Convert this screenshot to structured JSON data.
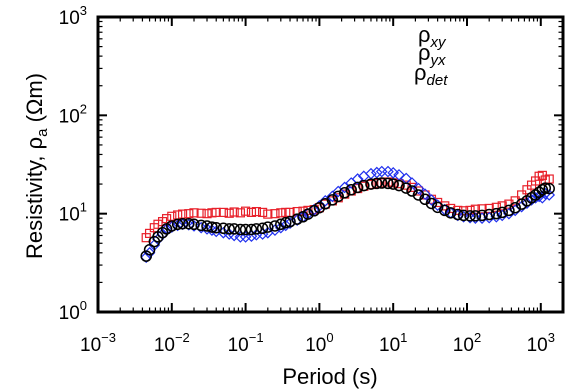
{
  "chart_data": {
    "type": "scatter",
    "title": "",
    "xlabel": "Period (s)",
    "ylabel": {
      "main": "Resistivity, ",
      "rho": "ρ",
      "sub": "a",
      "unit": " (Ωm)"
    },
    "x_scale": "log",
    "y_scale": "log",
    "xlim": [
      0.001,
      2000
    ],
    "ylim": [
      1,
      1000
    ],
    "grid": false,
    "legend_position": "top-right",
    "x_ticks": [
      {
        "value": 0.001,
        "base": "10",
        "exp": "−3"
      },
      {
        "value": 0.01,
        "base": "10",
        "exp": "−2"
      },
      {
        "value": 0.1,
        "base": "10",
        "exp": "−1"
      },
      {
        "value": 1,
        "base": "10",
        "exp": "0"
      },
      {
        "value": 10,
        "base": "10",
        "exp": "1"
      },
      {
        "value": 100,
        "base": "10",
        "exp": "2"
      },
      {
        "value": 1000,
        "base": "10",
        "exp": "3"
      }
    ],
    "y_ticks": [
      {
        "value": 1,
        "base": "10",
        "exp": "0"
      },
      {
        "value": 10,
        "base": "10",
        "exp": "1"
      },
      {
        "value": 100,
        "base": "10",
        "exp": "2"
      },
      {
        "value": 1000,
        "base": "10",
        "exp": "3"
      }
    ],
    "series": [
      {
        "key": "xy",
        "name_symbol": "ρ",
        "name_sub": "xy",
        "color": "#e8202a",
        "marker": "square",
        "points": [
          [
            0.0045,
            5.7
          ],
          [
            0.005,
            6.3
          ],
          [
            0.0058,
            7.2
          ],
          [
            0.0065,
            7.8
          ],
          [
            0.0075,
            8.3
          ],
          [
            0.0085,
            8.9
          ],
          [
            0.01,
            9.4
          ],
          [
            0.012,
            9.7
          ],
          [
            0.014,
            9.9
          ],
          [
            0.017,
            10.0
          ],
          [
            0.02,
            10.2
          ],
          [
            0.025,
            10.1
          ],
          [
            0.03,
            10.0
          ],
          [
            0.035,
            10.2
          ],
          [
            0.04,
            10.3
          ],
          [
            0.05,
            10.3
          ],
          [
            0.06,
            10.1
          ],
          [
            0.07,
            10.4
          ],
          [
            0.085,
            10.2
          ],
          [
            0.1,
            10.6
          ],
          [
            0.12,
            10.3
          ],
          [
            0.14,
            10.5
          ],
          [
            0.17,
            10.3
          ],
          [
            0.2,
            9.9
          ],
          [
            0.25,
            10.0
          ],
          [
            0.3,
            10.2
          ],
          [
            0.35,
            10.3
          ],
          [
            0.4,
            10.3
          ],
          [
            0.5,
            10.5
          ],
          [
            0.6,
            10.6
          ],
          [
            0.7,
            10.8
          ],
          [
            0.85,
            11.0
          ],
          [
            1.0,
            11.5
          ],
          [
            1.2,
            12.5
          ],
          [
            1.5,
            13.5
          ],
          [
            1.8,
            14.5
          ],
          [
            2.2,
            15.8
          ],
          [
            2.7,
            17.0
          ],
          [
            3.3,
            18.0
          ],
          [
            4.0,
            19.0
          ],
          [
            5.0,
            19.8
          ],
          [
            6.0,
            20.3
          ],
          [
            7.0,
            20.6
          ],
          [
            8.5,
            21.0
          ],
          [
            10,
            20.6
          ],
          [
            12,
            20.2
          ],
          [
            15,
            19.5
          ],
          [
            18,
            18.5
          ],
          [
            22,
            17.0
          ],
          [
            27,
            15.5
          ],
          [
            33,
            14.0
          ],
          [
            40,
            13.0
          ],
          [
            50,
            12.0
          ],
          [
            60,
            11.3
          ],
          [
            75,
            10.8
          ],
          [
            90,
            10.7
          ],
          [
            110,
            10.8
          ],
          [
            130,
            11.1
          ],
          [
            160,
            11.2
          ],
          [
            200,
            11.3
          ],
          [
            250,
            11.6
          ],
          [
            300,
            12.0
          ],
          [
            370,
            12.5
          ],
          [
            450,
            13.5
          ],
          [
            550,
            15.5
          ],
          [
            650,
            17.5
          ],
          [
            750,
            19.5
          ],
          [
            850,
            21.5
          ],
          [
            950,
            24.0
          ],
          [
            1050,
            24.5
          ],
          [
            1150,
            22.0
          ],
          [
            1300,
            22.5
          ]
        ]
      },
      {
        "key": "yx",
        "name_symbol": "ρ",
        "name_sub": "yx",
        "color": "#2030ee",
        "marker": "diamond",
        "points": [
          [
            0.0045,
            3.6
          ],
          [
            0.005,
            4.0
          ],
          [
            0.0058,
            4.8
          ],
          [
            0.0065,
            5.5
          ],
          [
            0.0075,
            6.2
          ],
          [
            0.0085,
            6.9
          ],
          [
            0.01,
            7.3
          ],
          [
            0.012,
            7.6
          ],
          [
            0.014,
            7.8
          ],
          [
            0.017,
            7.7
          ],
          [
            0.02,
            7.5
          ],
          [
            0.025,
            7.2
          ],
          [
            0.03,
            7.0
          ],
          [
            0.035,
            6.8
          ],
          [
            0.04,
            6.6
          ],
          [
            0.05,
            6.4
          ],
          [
            0.06,
            6.2
          ],
          [
            0.07,
            6.0
          ],
          [
            0.085,
            5.8
          ],
          [
            0.1,
            5.8
          ],
          [
            0.12,
            5.9
          ],
          [
            0.14,
            6.1
          ],
          [
            0.17,
            6.2
          ],
          [
            0.2,
            6.4
          ],
          [
            0.25,
            6.8
          ],
          [
            0.3,
            7.2
          ],
          [
            0.35,
            7.6
          ],
          [
            0.4,
            8.0
          ],
          [
            0.5,
            8.6
          ],
          [
            0.6,
            9.3
          ],
          [
            0.7,
            10.0
          ],
          [
            0.85,
            11.0
          ],
          [
            1.0,
            12.0
          ],
          [
            1.2,
            13.5
          ],
          [
            1.5,
            15.0
          ],
          [
            1.8,
            16.8
          ],
          [
            2.2,
            18.5
          ],
          [
            2.7,
            20.5
          ],
          [
            3.3,
            22.5
          ],
          [
            4.0,
            24.0
          ],
          [
            5.0,
            25.5
          ],
          [
            6.0,
            26.2
          ],
          [
            7.0,
            26.8
          ],
          [
            8.5,
            26.8
          ],
          [
            10,
            26.0
          ],
          [
            12,
            24.8
          ],
          [
            15,
            22.8
          ],
          [
            18,
            20.5
          ],
          [
            22,
            18.0
          ],
          [
            27,
            15.8
          ],
          [
            33,
            13.8
          ],
          [
            40,
            12.2
          ],
          [
            50,
            11.0
          ],
          [
            60,
            10.2
          ],
          [
            75,
            9.6
          ],
          [
            90,
            9.3
          ],
          [
            110,
            9.1
          ],
          [
            130,
            9.0
          ],
          [
            160,
            9.0
          ],
          [
            200,
            9.1
          ],
          [
            250,
            9.3
          ],
          [
            300,
            9.6
          ],
          [
            370,
            10.0
          ],
          [
            450,
            10.8
          ],
          [
            550,
            11.8
          ],
          [
            650,
            12.8
          ],
          [
            750,
            13.8
          ],
          [
            850,
            14.5
          ],
          [
            950,
            15.0
          ],
          [
            1050,
            14.5
          ],
          [
            1150,
            16.0
          ],
          [
            1300,
            15.5
          ]
        ]
      },
      {
        "key": "det",
        "name_symbol": "ρ",
        "name_sub": "det",
        "color": "#000000",
        "marker": "circle",
        "points": [
          [
            0.0045,
            3.7
          ],
          [
            0.005,
            4.3
          ],
          [
            0.0058,
            5.2
          ],
          [
            0.0065,
            5.8
          ],
          [
            0.0075,
            6.4
          ],
          [
            0.0085,
            7.0
          ],
          [
            0.01,
            7.5
          ],
          [
            0.012,
            7.8
          ],
          [
            0.014,
            7.9
          ],
          [
            0.017,
            7.9
          ],
          [
            0.02,
            7.8
          ],
          [
            0.025,
            7.6
          ],
          [
            0.03,
            7.5
          ],
          [
            0.035,
            7.3
          ],
          [
            0.04,
            7.2
          ],
          [
            0.05,
            7.1
          ],
          [
            0.06,
            7.0
          ],
          [
            0.07,
            7.0
          ],
          [
            0.085,
            6.9
          ],
          [
            0.1,
            6.9
          ],
          [
            0.12,
            6.9
          ],
          [
            0.14,
            7.0
          ],
          [
            0.17,
            7.1
          ],
          [
            0.2,
            7.3
          ],
          [
            0.25,
            7.5
          ],
          [
            0.3,
            7.8
          ],
          [
            0.35,
            8.1
          ],
          [
            0.4,
            8.3
          ],
          [
            0.5,
            8.8
          ],
          [
            0.6,
            9.3
          ],
          [
            0.7,
            9.9
          ],
          [
            0.85,
            10.7
          ],
          [
            1.0,
            11.5
          ],
          [
            1.2,
            12.6
          ],
          [
            1.5,
            13.8
          ],
          [
            1.8,
            15.0
          ],
          [
            2.2,
            16.3
          ],
          [
            2.7,
            17.5
          ],
          [
            3.3,
            18.5
          ],
          [
            4.0,
            19.3
          ],
          [
            5.0,
            20.0
          ],
          [
            6.0,
            20.3
          ],
          [
            7.0,
            20.5
          ],
          [
            8.5,
            20.3
          ],
          [
            10,
            20.0
          ],
          [
            12,
            19.3
          ],
          [
            15,
            18.2
          ],
          [
            18,
            17.0
          ],
          [
            22,
            15.5
          ],
          [
            27,
            14.0
          ],
          [
            33,
            12.7
          ],
          [
            40,
            11.6
          ],
          [
            50,
            10.8
          ],
          [
            60,
            10.2
          ],
          [
            75,
            9.8
          ],
          [
            90,
            9.6
          ],
          [
            110,
            9.5
          ],
          [
            130,
            9.5
          ],
          [
            160,
            9.6
          ],
          [
            200,
            9.8
          ],
          [
            250,
            10.0
          ],
          [
            300,
            10.3
          ],
          [
            370,
            10.8
          ],
          [
            450,
            11.5
          ],
          [
            550,
            12.5
          ],
          [
            650,
            13.5
          ],
          [
            750,
            14.5
          ],
          [
            850,
            15.5
          ],
          [
            950,
            16.5
          ],
          [
            1050,
            17.5
          ],
          [
            1150,
            18.2
          ],
          [
            1300,
            18.0
          ]
        ]
      }
    ]
  }
}
